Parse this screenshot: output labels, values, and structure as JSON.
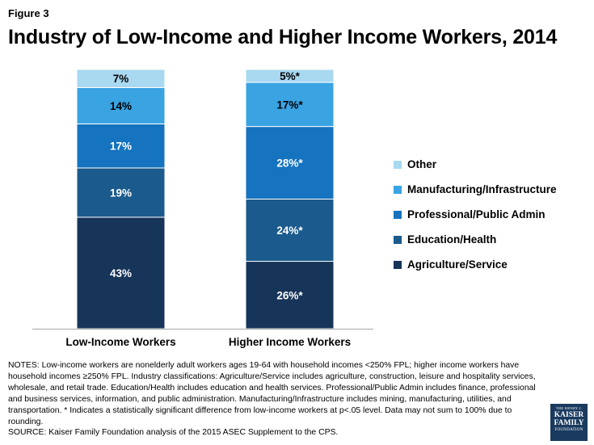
{
  "header": {
    "figure_label": "Figure 3",
    "title": "Industry of Low-Income and Higher Income Workers, 2014"
  },
  "chart_data": {
    "type": "bar",
    "stacked": true,
    "title": "Industry of Low-Income and Higher Income Workers, 2014",
    "categories": [
      "Low-Income Workers",
      "Higher Income Workers"
    ],
    "series": [
      {
        "name": "Agriculture/Service",
        "values": [
          43,
          26
        ],
        "labels": [
          "43%",
          "26%*"
        ],
        "color": "#173459"
      },
      {
        "name": "Education/Health",
        "values": [
          19,
          24
        ],
        "labels": [
          "19%",
          "24%*"
        ],
        "color": "#1b5a8c"
      },
      {
        "name": "Professional/Public Admin",
        "values": [
          17,
          28
        ],
        "labels": [
          "17%",
          "28%*"
        ],
        "color": "#1573bf"
      },
      {
        "name": "Manufacturing/Infrastructure",
        "values": [
          14,
          17
        ],
        "labels": [
          "14%",
          "17%*"
        ],
        "color": "#3aa3e2"
      },
      {
        "name": "Other",
        "values": [
          7,
          5
        ],
        "labels": [
          "7%",
          "5%*"
        ],
        "color": "#a9d8f1"
      }
    ],
    "legend_order": [
      "Other",
      "Manufacturing/Infrastructure",
      "Professional/Public Admin",
      "Education/Health",
      "Agriculture/Service"
    ],
    "legend_position": "right",
    "ylim": [
      0,
      100
    ],
    "grid": false
  },
  "notes": {
    "text": "NOTES: Low-income workers are nonelderly adult workers ages 19-64 with household incomes <250% FPL; higher income workers have household incomes ≥250% FPL. Industry classifications: Agriculture/Service includes agriculture, construction, leisure and hospitality services, wholesale, and retail trade. Education/Health includes education and health services. Professional/Public Admin includes finance, professional and business services, information, and public administration. Manufacturing/Infrastructure includes mining, manufacturing, utilities, and transportation. * Indicates a statistically significant difference from low-income workers at p<.05 level.  Data may not sum to 100% due to rounding.",
    "source": "SOURCE: Kaiser Family Foundation analysis of the 2015 ASEC Supplement to the CPS."
  },
  "logo": {
    "line1": "THE HENRY J.",
    "line2": "KAISER",
    "line3": "FAMILY",
    "line4": "FOUNDATION"
  }
}
